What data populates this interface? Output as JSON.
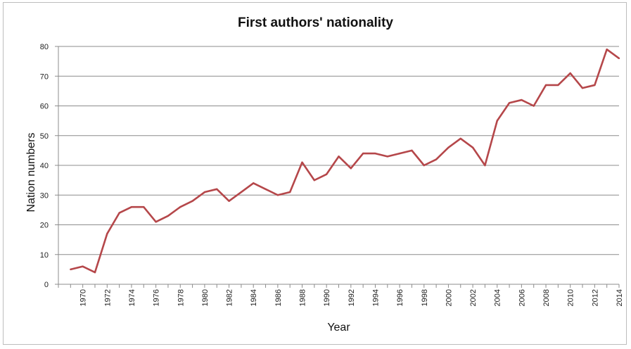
{
  "chart_data": {
    "type": "line",
    "title": "First authors' nationality",
    "xlabel": "Year",
    "ylabel": "Nation numbers",
    "ylim": [
      0,
      80
    ],
    "yticks": [
      "0",
      "10",
      "20",
      "30",
      "40",
      "50",
      "60",
      "70",
      "80"
    ],
    "xlim": [
      1968,
      2014
    ],
    "xticks": [
      "1970",
      "1972",
      "1974",
      "1976",
      "1978",
      "1980",
      "1982",
      "1984",
      "1986",
      "1988",
      "1990",
      "1992",
      "1994",
      "1996",
      "1998",
      "2000",
      "2002",
      "2004",
      "2006",
      "2008",
      "2010",
      "2012",
      "2014"
    ],
    "grid": true,
    "legend": "none",
    "line_color": "#b5474a",
    "series": [
      {
        "x": [
          1969,
          1970,
          1971,
          1972,
          1973,
          1974,
          1975,
          1976,
          1977,
          1978,
          1979,
          1980,
          1981,
          1982,
          1983,
          1984,
          1985,
          1986,
          1987,
          1988,
          1989,
          1990,
          1991,
          1992,
          1993,
          1994,
          1995,
          1996,
          1997,
          1998,
          1999,
          2000,
          2001,
          2002,
          2003,
          2004,
          2005,
          2006,
          2007,
          2008,
          2009,
          2010,
          2011,
          2012,
          2013,
          2014
        ],
        "values": [
          5,
          6,
          4,
          17,
          24,
          26,
          26,
          21,
          23,
          26,
          28,
          31,
          32,
          28,
          31,
          34,
          32,
          30,
          31,
          41,
          35,
          37,
          43,
          39,
          44,
          44,
          43,
          44,
          45,
          40,
          42,
          46,
          49,
          46,
          40,
          55,
          61,
          62,
          60,
          67,
          67,
          71,
          66,
          67,
          79,
          76
        ]
      }
    ]
  }
}
